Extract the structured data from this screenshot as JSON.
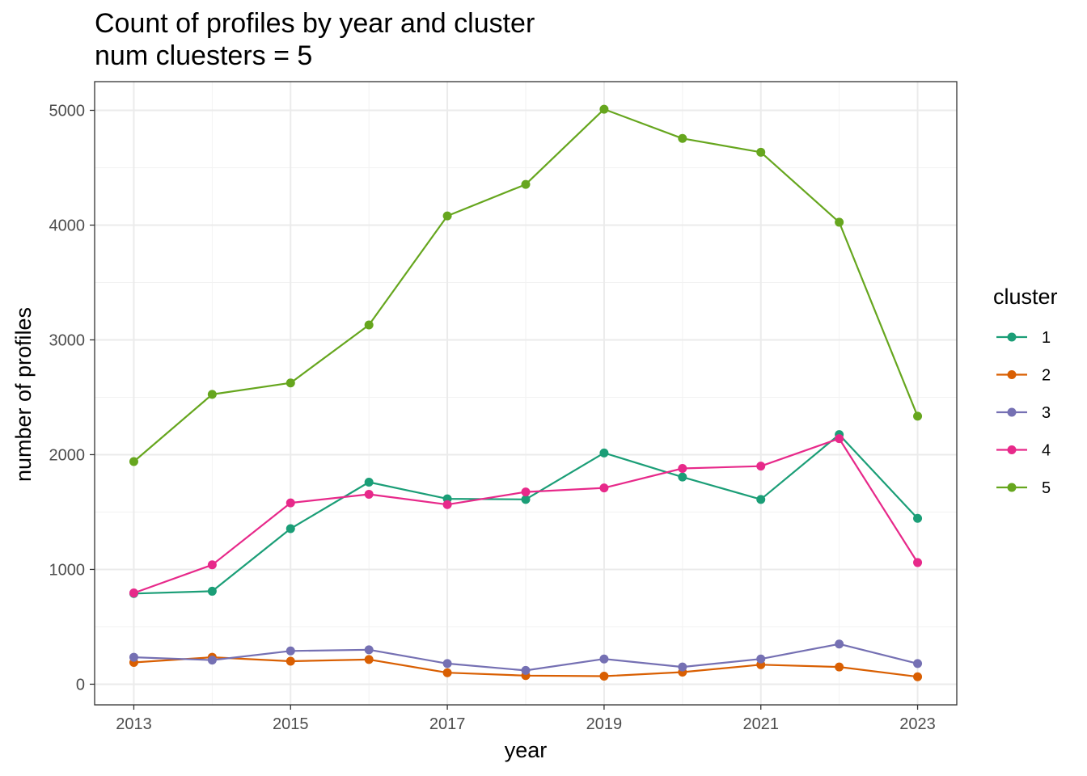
{
  "chart_data": {
    "type": "line",
    "title": "Count of profiles by year and cluster",
    "subtitle": "num cluesters = 5",
    "xlabel": "year",
    "ylabel": "number of profiles",
    "x": [
      2013,
      2014,
      2015,
      2016,
      2017,
      2018,
      2019,
      2020,
      2021,
      2022,
      2023
    ],
    "x_ticks": [
      "2013",
      "2015",
      "2017",
      "2019",
      "2021",
      "2023"
    ],
    "y_ticks": [
      "0",
      "1000",
      "2000",
      "3000",
      "4000",
      "5000"
    ],
    "xlim": [
      2012.5,
      2023.5
    ],
    "ylim": [
      -180,
      5250
    ],
    "grid": true,
    "legend_position": "right",
    "legend_title": "cluster",
    "series": [
      {
        "name": "1",
        "color": "#1b9e77",
        "values": [
          790,
          810,
          1355,
          1760,
          1615,
          1610,
          2015,
          1805,
          1610,
          2175,
          1445
        ]
      },
      {
        "name": "2",
        "color": "#d95f02",
        "values": [
          190,
          235,
          200,
          215,
          100,
          75,
          70,
          105,
          170,
          150,
          65
        ]
      },
      {
        "name": "3",
        "color": "#7570b3",
        "values": [
          235,
          210,
          290,
          300,
          180,
          120,
          220,
          150,
          220,
          350,
          180
        ]
      },
      {
        "name": "4",
        "color": "#e7298a",
        "values": [
          795,
          1040,
          1580,
          1655,
          1565,
          1675,
          1710,
          1880,
          1900,
          2140,
          1060
        ]
      },
      {
        "name": "5",
        "color": "#66a61e",
        "values": [
          1940,
          2525,
          2625,
          3130,
          4080,
          4355,
          5010,
          4755,
          4635,
          4025,
          2335
        ]
      }
    ]
  }
}
